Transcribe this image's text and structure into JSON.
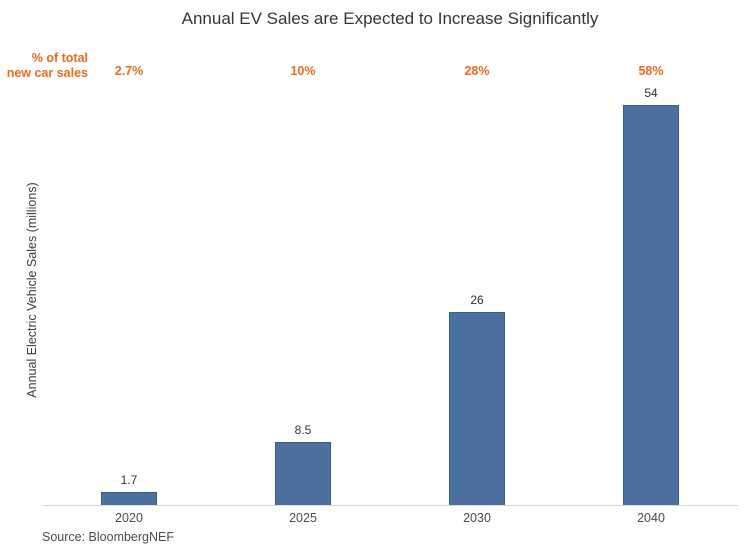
{
  "chart": {
    "title": "Annual EV Sales are Expected to Increase Significantly",
    "pct_header_line1": "% of total",
    "pct_header_line2": "new car sales",
    "ylabel": "Annual Electric Vehicle Sales (millions)",
    "source": "Source: BloombergNEF"
  },
  "chart_data": {
    "type": "bar",
    "title": "Annual EV Sales are Expected to Increase Significantly",
    "categories": [
      "2020",
      "2025",
      "2030",
      "2040"
    ],
    "values": [
      1.7,
      8.5,
      26,
      54
    ],
    "pct_labels": [
      "2.7%",
      "10%",
      "28%",
      "58%"
    ],
    "pct_axis_label": "% of total new car sales",
    "xlabel": "",
    "ylabel": "Annual Electric Vehicle Sales (millions)",
    "ylim": [
      0,
      56
    ],
    "grid": false,
    "legend": false,
    "value_labels_shown": true,
    "source": "Source: BloombergNEF",
    "bar_color": "#4d719f",
    "bar_border_color": "#3a5c8c",
    "accent_color": "#ee6a1d",
    "axis_line_color": "#d7d7d7"
  }
}
